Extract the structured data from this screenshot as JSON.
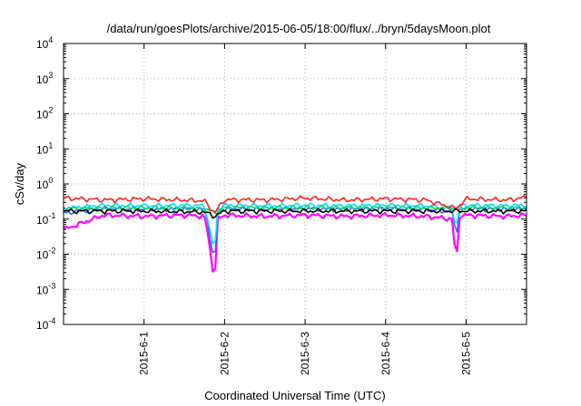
{
  "chart_data": {
    "type": "line",
    "title": "/data/run/goesPlots/archive/2015-06-05/18:00/flux/../bryn/5daysMoon.plot",
    "xlabel": "Coordinated Universal Time (UTC)",
    "ylabel": "cSv/day",
    "y_scale": "log",
    "ylim": [
      0.0001,
      10000
    ],
    "y_ticks": [
      {
        "mantissa": "10",
        "exp": "-4"
      },
      {
        "mantissa": "10",
        "exp": "-3"
      },
      {
        "mantissa": "10",
        "exp": "-2"
      },
      {
        "mantissa": "10",
        "exp": "-1"
      },
      {
        "mantissa": "10",
        "exp": "0"
      },
      {
        "mantissa": "10",
        "exp": "1"
      },
      {
        "mantissa": "10",
        "exp": "2"
      },
      {
        "mantissa": "10",
        "exp": "3"
      },
      {
        "mantissa": "10",
        "exp": "4"
      }
    ],
    "xlim": [
      "2015-05-31 00:00",
      "2015-06-05 18:00"
    ],
    "x_ticks": [
      "2015-6-1",
      "2015-6-2",
      "2015-6-3",
      "2015-6-4",
      "2015-6-5"
    ],
    "grid": true,
    "series": [
      {
        "color": "#ff00ff",
        "baseline": 0.13,
        "x": [
          "2015-05-31 00:00",
          "2015-05-31 12:00",
          "2015-06-01 00:00",
          "2015-06-01 12:00",
          "2015-06-01 18:00",
          "2015-06-01 19:00",
          "2015-06-01 20:00",
          "2015-06-01 21:00",
          "2015-06-01 22:00",
          "2015-06-02 00:00",
          "2015-06-02 12:00",
          "2015-06-03 00:00",
          "2015-06-03 12:00",
          "2015-06-04 00:00",
          "2015-06-04 12:00",
          "2015-06-04 20:00",
          "2015-06-04 21:00",
          "2015-06-04 22:00",
          "2015-06-05 00:00",
          "2015-06-05 12:00",
          "2015-06-05 18:00"
        ],
        "y": [
          0.05,
          0.13,
          0.12,
          0.13,
          0.12,
          0.04,
          0.008,
          0.0015,
          0.1,
          0.13,
          0.12,
          0.13,
          0.12,
          0.13,
          0.12,
          0.1,
          0.004,
          0.12,
          0.13,
          0.12,
          0.13
        ]
      },
      {
        "color": "#4060ff",
        "baseline": 0.2,
        "x": [
          "2015-05-31 00:00",
          "2015-05-31 12:00",
          "2015-06-01 00:00",
          "2015-06-01 12:00",
          "2015-06-01 18:00",
          "2015-06-01 19:00",
          "2015-06-01 20:00",
          "2015-06-01 21:00",
          "2015-06-01 22:00",
          "2015-06-02 00:00",
          "2015-06-02 12:00",
          "2015-06-03 00:00",
          "2015-06-03 12:00",
          "2015-06-04 00:00",
          "2015-06-04 12:00",
          "2015-06-04 20:00",
          "2015-06-04 21:00",
          "2015-06-04 22:00",
          "2015-06-05 00:00",
          "2015-06-05 12:00",
          "2015-06-05 18:00"
        ],
        "y": [
          0.15,
          0.2,
          0.19,
          0.2,
          0.19,
          0.08,
          0.02,
          0.005,
          0.15,
          0.2,
          0.19,
          0.2,
          0.19,
          0.2,
          0.19,
          0.16,
          0.03,
          0.18,
          0.2,
          0.19,
          0.2
        ]
      },
      {
        "color": "#00ddff",
        "baseline": 0.25,
        "x": [
          "2015-05-31 00:00",
          "2015-05-31 12:00",
          "2015-06-01 00:00",
          "2015-06-01 12:00",
          "2015-06-01 18:00",
          "2015-06-01 19:00",
          "2015-06-01 20:00",
          "2015-06-01 21:00",
          "2015-06-01 22:00",
          "2015-06-02 00:00",
          "2015-06-02 12:00",
          "2015-06-03 00:00",
          "2015-06-03 12:00",
          "2015-06-04 00:00",
          "2015-06-04 12:00",
          "2015-06-04 20:00",
          "2015-06-04 21:00",
          "2015-06-04 22:00",
          "2015-06-05 00:00",
          "2015-06-05 12:00",
          "2015-06-05 18:00"
        ],
        "y": [
          0.2,
          0.25,
          0.24,
          0.25,
          0.24,
          0.1,
          0.03,
          0.012,
          0.2,
          0.25,
          0.24,
          0.25,
          0.24,
          0.25,
          0.24,
          0.2,
          0.05,
          0.22,
          0.25,
          0.24,
          0.25
        ]
      },
      {
        "color": "#00dd60",
        "baseline": 0.21,
        "x": [
          "2015-05-31 00:00",
          "2015-06-01 00:00",
          "2015-06-01 18:00",
          "2015-06-01 21:00",
          "2015-06-02 00:00",
          "2015-06-03 00:00",
          "2015-06-04 00:00",
          "2015-06-05 00:00",
          "2015-06-05 18:00"
        ],
        "y": [
          0.2,
          0.21,
          0.2,
          0.15,
          0.21,
          0.21,
          0.21,
          0.21,
          0.21
        ]
      },
      {
        "color": "#000000",
        "baseline": 0.17,
        "x": [
          "2015-05-31 00:00",
          "2015-06-01 00:00",
          "2015-06-01 18:00",
          "2015-06-01 21:00",
          "2015-06-02 00:00",
          "2015-06-03 00:00",
          "2015-06-04 00:00",
          "2015-06-05 00:00",
          "2015-06-05 18:00"
        ],
        "y": [
          0.17,
          0.17,
          0.16,
          0.12,
          0.17,
          0.17,
          0.17,
          0.17,
          0.17
        ]
      },
      {
        "color": "#ff2020",
        "baseline": 0.35,
        "x": [
          "2015-05-31 00:00",
          "2015-05-31 12:00",
          "2015-06-01 00:00",
          "2015-06-01 12:00",
          "2015-06-01 18:00",
          "2015-06-01 21:00",
          "2015-06-02 00:00",
          "2015-06-02 12:00",
          "2015-06-03 00:00",
          "2015-06-03 12:00",
          "2015-06-04 00:00",
          "2015-06-04 12:00",
          "2015-06-04 21:00",
          "2015-06-05 00:00",
          "2015-06-05 12:00",
          "2015-06-05 18:00"
        ],
        "y": [
          0.4,
          0.35,
          0.38,
          0.35,
          0.33,
          0.15,
          0.36,
          0.35,
          0.4,
          0.35,
          0.38,
          0.35,
          0.2,
          0.38,
          0.35,
          0.42
        ]
      }
    ]
  }
}
